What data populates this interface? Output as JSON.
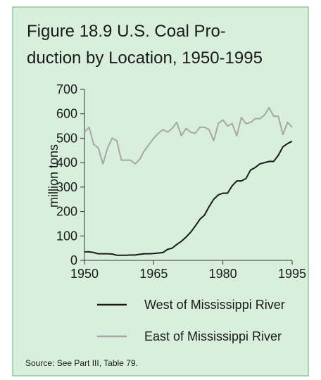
{
  "chart_data": {
    "type": "line",
    "title": [
      "Figure 18.9  U.S. Coal Pro-",
      "duction by Location, 1950-1995"
    ],
    "y_label": "million tons",
    "source": "Source: See Part III, Table 79.",
    "x": [
      1950,
      1951,
      1952,
      1953,
      1954,
      1955,
      1956,
      1957,
      1958,
      1959,
      1960,
      1961,
      1962,
      1963,
      1964,
      1965,
      1966,
      1967,
      1968,
      1969,
      1970,
      1971,
      1972,
      1973,
      1974,
      1975,
      1976,
      1977,
      1978,
      1979,
      1980,
      1981,
      1982,
      1983,
      1984,
      1985,
      1986,
      1987,
      1988,
      1989,
      1990,
      1991,
      1992,
      1993,
      1994,
      1995
    ],
    "series": [
      {
        "name": "West of Mississippi River",
        "color": "#1a1a1a",
        "values": [
          35,
          35,
          32,
          27,
          27,
          27,
          26,
          21,
          21,
          21,
          22,
          22,
          25,
          27,
          27,
          28,
          30,
          32,
          45,
          50,
          65,
          78,
          95,
          115,
          140,
          168,
          185,
          220,
          250,
          268,
          275,
          275,
          305,
          325,
          325,
          335,
          370,
          380,
          395,
          400,
          405,
          405,
          430,
          465,
          478,
          488
        ]
      },
      {
        "name": "East of Mississippi River",
        "color": "#a6a6a6",
        "values": [
          525,
          545,
          475,
          460,
          395,
          460,
          500,
          490,
          410,
          410,
          410,
          395,
          415,
          450,
          475,
          500,
          520,
          535,
          525,
          540,
          565,
          510,
          540,
          525,
          520,
          545,
          545,
          535,
          490,
          560,
          575,
          550,
          560,
          510,
          585,
          560,
          565,
          580,
          580,
          595,
          625,
          590,
          590,
          515,
          565,
          545
        ]
      }
    ],
    "xlim": [
      1950,
      1995
    ],
    "xticks": [
      1950,
      1965,
      1980,
      1995
    ],
    "ylim": [
      0,
      700
    ],
    "yticks": [
      0,
      100,
      200,
      300,
      400,
      500,
      600,
      700
    ]
  }
}
